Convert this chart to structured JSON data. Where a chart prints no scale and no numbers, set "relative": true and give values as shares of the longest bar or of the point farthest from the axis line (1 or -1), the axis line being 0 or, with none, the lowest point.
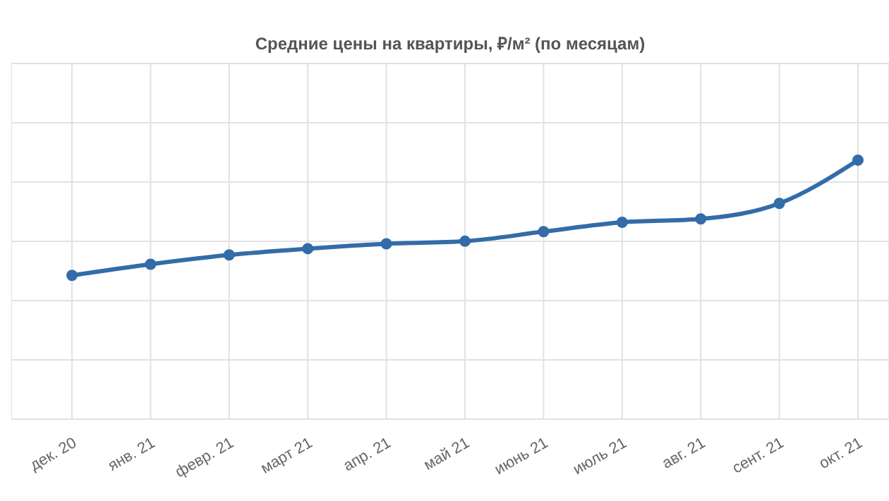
{
  "chart_data": {
    "type": "line",
    "title": "Средние цены на квартиры, ₽/м² (по месяцам)",
    "categories": [
      "дек. 20",
      "янв. 21",
      "февр. 21",
      "март 21",
      "апр. 21",
      "май 21",
      "июнь 21",
      "июль 21",
      "авг. 21",
      "сент. 21",
      "окт. 21"
    ],
    "series": [
      {
        "color": "#336ca8",
        "values": [
          0.555,
          0.598,
          0.634,
          0.658,
          0.677,
          0.687,
          0.724,
          0.76,
          0.773,
          0.833,
          1
        ]
      }
    ],
    "relative": true,
    "grid": true,
    "legend": false,
    "marker": "circle",
    "line_style": "solid"
  }
}
